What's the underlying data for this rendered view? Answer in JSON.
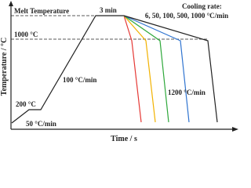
{
  "y_axis_label": "Temperature / °C",
  "x_axis_label": "Time / s",
  "labels": {
    "melt": "Melt Temperature",
    "hold": "3 min",
    "t1000": "1000 °C",
    "t200": "200 °C",
    "heat_fast": "100 °C/min",
    "heat_slow": "50 °C/min",
    "quench": "1200 °C/min",
    "cooling_title": "Cooling rate:",
    "cooling_rates": "6, 50, 100, 500, 1000 °C/min"
  }
}
